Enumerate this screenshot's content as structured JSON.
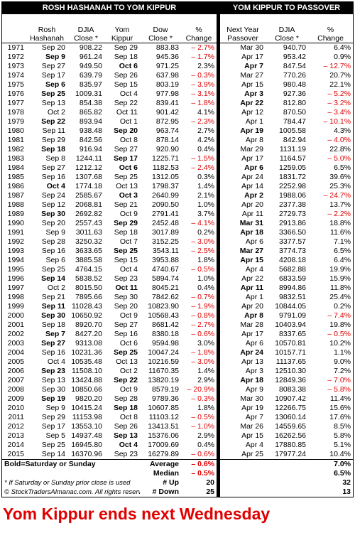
{
  "header": {
    "left_title": "ROSH HASHANAH TO YOM KIPPUR",
    "right_title": "YOM KIPPUR TO PASSOVER",
    "columns": [
      [
        "Rosh",
        "Hashanah"
      ],
      [
        "DJIA",
        "Close *"
      ],
      [
        "Yom",
        "Kippur"
      ],
      [
        "Dow",
        "Close *"
      ],
      [
        "%",
        "Change"
      ],
      [
        "Next Year",
        "Passover"
      ],
      [
        "DJIA",
        "Close *"
      ],
      [
        "%",
        "Change"
      ]
    ]
  },
  "rows": [
    [
      "1971",
      "Sep 20",
      "908.22",
      "Sep 29",
      "883.83",
      "– 2.7%",
      "Mar 30",
      "940.70",
      "6.4%"
    ],
    [
      "1972",
      {
        "text": "Sep 9",
        "bold": true
      },
      "961.24",
      "Sep 18",
      "945.36",
      "– 1.7%",
      "Apr 17",
      "953.42",
      "0.9%"
    ],
    [
      "1973",
      "Sep 27",
      "949.50",
      {
        "text": "Oct 6",
        "bold": true
      },
      "971.25",
      "2.3%",
      {
        "text": "Apr 7",
        "bold": true
      },
      "847.54",
      "– 12.7%"
    ],
    [
      "1974",
      "Sep 17",
      "639.79",
      "Sep 26",
      "637.98",
      "– 0.3%",
      "Mar 27",
      "770.26",
      "20.7%"
    ],
    [
      "1975",
      {
        "text": "Sep 6",
        "bold": true
      },
      "835.97",
      "Sep 15",
      "803.19",
      "– 3.9%",
      "Apr 15",
      "980.48",
      "22.1%"
    ],
    [
      "1976",
      {
        "text": "Sep 25",
        "bold": true
      },
      "1009.31",
      "Oct 4",
      "977.98",
      "– 3.1%",
      {
        "text": "Apr 3",
        "bold": true
      },
      "927.36",
      "– 5.2%"
    ],
    [
      "1977",
      "Sep 13",
      "854.38",
      "Sep 22",
      "839.41",
      "– 1.8%",
      {
        "text": "Apr 22",
        "bold": true
      },
      "812.80",
      "– 3.2%"
    ],
    [
      "1978",
      "Oct 2",
      "865.82",
      "Oct 11",
      "901.42",
      "4.1%",
      "Apr 12",
      "870.50",
      "– 3.4%"
    ],
    [
      "1979",
      {
        "text": "Sep 22",
        "bold": true
      },
      "893.94",
      "Oct 1",
      "872.95",
      "– 2.3%",
      "Apr 1",
      "784.47",
      "– 10.1%"
    ],
    [
      "1980",
      "Sep 11",
      "938.48",
      {
        "text": "Sep 20",
        "bold": true
      },
      "963.74",
      "2.7%",
      {
        "text": "Apr 19",
        "bold": true
      },
      "1005.58",
      "4.3%"
    ],
    [
      "1981",
      "Sep 29",
      "842.56",
      "Oct 8",
      "878.14",
      "4.2%",
      "Apr 8",
      "842.94",
      "– 4.0%"
    ],
    [
      "1982",
      {
        "text": "Sep 18",
        "bold": true
      },
      "916.94",
      "Sep 27",
      "920.90",
      "0.4%",
      "Mar 29",
      "1131.19",
      "22.8%"
    ],
    [
      "1983",
      "Sep 8",
      "1244.11",
      {
        "text": "Sep 17",
        "bold": true
      },
      "1225.71",
      "– 1.5%",
      "Apr 17",
      "1164.57",
      "– 5.0%"
    ],
    [
      "1984",
      "Sep 27",
      "1212.12",
      {
        "text": "Oct 6",
        "bold": true
      },
      "1182.53",
      "– 2.4%",
      {
        "text": "Apr 6",
        "bold": true
      },
      "1259.05",
      "6.5%"
    ],
    [
      "1985",
      "Sep 16",
      "1307.68",
      "Sep 25",
      "1312.05",
      "0.3%",
      "Apr 24",
      "1831.72",
      "39.6%"
    ],
    [
      "1986",
      {
        "text": "Oct 4",
        "bold": true
      },
      "1774.18",
      "Oct 13",
      "1798.37",
      "1.4%",
      "Apr 14",
      "2252.98",
      "25.3%"
    ],
    [
      "1987",
      "Sep 24",
      "2585.67",
      {
        "text": "Oct 3",
        "bold": true
      },
      "2640.99",
      "2.1%",
      {
        "text": "Apr 2",
        "bold": true
      },
      "1988.06",
      "– 24.7%"
    ],
    [
      "1988",
      "Sep 12",
      "2068.81",
      "Sep 21",
      "2090.50",
      "1.0%",
      "Apr 20",
      "2377.38",
      "13.7%"
    ],
    [
      "1989",
      {
        "text": "Sep 30",
        "bold": true
      },
      "2692.82",
      "Oct 9",
      "2791.41",
      "3.7%",
      "Apr 11",
      "2729.73",
      "– 2.2%"
    ],
    [
      "1990",
      "Sep 20",
      "2557.43",
      {
        "text": "Sep 29",
        "bold": true
      },
      "2452.48",
      "– 4.1%",
      {
        "text": "Mar 31",
        "bold": true
      },
      "2913.86",
      "18.8%"
    ],
    [
      "1991",
      "Sep 9",
      "3011.63",
      "Sep 18",
      "3017.89",
      "0.2%",
      {
        "text": "Apr 18",
        "bold": true
      },
      "3366.50",
      "11.6%"
    ],
    [
      "1992",
      "Sep 28",
      "3250.32",
      "Oct 7",
      "3152.25",
      "– 3.0%",
      "Apr 6",
      "3377.57",
      "7.1%"
    ],
    [
      "1993",
      "Sep 16",
      "3633.65",
      {
        "text": "Sep 25",
        "bold": true
      },
      "3543.11",
      "– 2.5%",
      {
        "text": "Mar 27",
        "bold": true
      },
      "3774.73",
      "6.5%"
    ],
    [
      "1994",
      "Sep 6",
      "3885.58",
      "Sep 15",
      "3953.88",
      "1.8%",
      {
        "text": "Apr 15",
        "bold": true
      },
      "4208.18",
      "6.4%"
    ],
    [
      "1995",
      "Sep 25",
      "4764.15",
      "Oct 4",
      "4740.67",
      "– 0.5%",
      "Apr 4",
      "5682.88",
      "19.9%"
    ],
    [
      "1996",
      {
        "text": "Sep 14",
        "bold": true
      },
      "5838.52",
      "Sep 23",
      "5894.74",
      "1.0%",
      "Apr 22",
      "6833.59",
      "15.9%"
    ],
    [
      "1997",
      "Oct 2",
      "8015.50",
      {
        "text": "Oct 11",
        "bold": true
      },
      "8045.21",
      "0.4%",
      {
        "text": "Apr 11",
        "bold": true
      },
      "8994.86",
      "11.8%"
    ],
    [
      "1998",
      "Sep 21",
      "7895.66",
      "Sep 30",
      "7842.62",
      "– 0.7%",
      "Apr 1",
      "9832.51",
      "25.4%"
    ],
    [
      "1999",
      {
        "text": "Sep 11",
        "bold": true
      },
      "11028.43",
      "Sep 20",
      "10823.90",
      "– 1.9%",
      "Apr 20",
      "10844.05",
      "0.2%"
    ],
    [
      "2000",
      {
        "text": "Sep 30",
        "bold": true
      },
      "10650.92",
      "Oct 9",
      "10568.43",
      "– 0.8%",
      {
        "text": "Apr 8",
        "bold": true
      },
      "9791.09",
      "– 7.4%"
    ],
    [
      "2001",
      "Sep 18",
      "8920.70",
      "Sep 27",
      "8681.42",
      "– 2.7%",
      "Mar 28",
      "10403.94",
      "19.8%"
    ],
    [
      "2002",
      {
        "text": "Sep 7",
        "bold": true
      },
      "8427.20",
      "Sep 16",
      "8380.18",
      "– 0.6%",
      "Apr 17",
      "8337.65",
      "– 0.5%"
    ],
    [
      "2003",
      {
        "text": "Sep 27",
        "bold": true
      },
      "9313.08",
      "Oct 6",
      "9594.98",
      "3.0%",
      "Apr 6",
      "10570.81",
      "10.2%"
    ],
    [
      "2004",
      "Sep 16",
      "10231.36",
      {
        "text": "Sep 25",
        "bold": true
      },
      "10047.24",
      "– 1.8%",
      {
        "text": "Apr 24",
        "bold": true
      },
      "10157.71",
      "1.1%"
    ],
    [
      "2005",
      "Oct 4",
      "10535.48",
      "Oct 13",
      "10216.59",
      "– 3.0%",
      "Apr 13",
      "11137.65",
      "9.0%"
    ],
    [
      "2006",
      {
        "text": "Sep 23",
        "bold": true
      },
      "11508.10",
      "Oct 2",
      "11670.35",
      "1.4%",
      "Apr 3",
      "12510.30",
      "7.2%"
    ],
    [
      "2007",
      "Sep 13",
      "13424.88",
      {
        "text": "Sep 22",
        "bold": true
      },
      "13820.19",
      "2.9%",
      {
        "text": "Apr 18",
        "bold": true
      },
      "12849.36",
      "– 7.0%"
    ],
    [
      "2008",
      "Sep 30",
      "10850.66",
      "Oct 9",
      "8579.19",
      "– 20.9%",
      "Apr 9",
      "8083.38",
      "– 5.8%"
    ],
    [
      "2009",
      {
        "text": "Sep 19",
        "bold": true
      },
      "9820.20",
      "Sep 28",
      "9789.36",
      "– 0.3%",
      "Mar 30",
      "10907.42",
      "11.4%"
    ],
    [
      "2010",
      "Sep 9",
      "10415.24",
      {
        "text": "Sep 18",
        "bold": true
      },
      "10607.85",
      "1.8%",
      "Apr 19",
      "12266.75",
      "15.6%"
    ],
    [
      "2011",
      "Sep 29",
      "11153.98",
      "Oct 8",
      "11103.12",
      "– 0.5%",
      "Apr 7",
      "13060.14",
      "17.6%"
    ],
    [
      "2012",
      "Sep 17",
      "13553.10",
      "Sep 26",
      "13413.51",
      "– 1.0%",
      "Mar 26",
      "14559.65",
      "8.5%"
    ],
    [
      "2013",
      "Sep 5",
      "14937.48",
      {
        "text": "Sep 13",
        "bold": true
      },
      "15376.06",
      "2.9%",
      "Apr 15",
      "16262.56",
      "5.8%"
    ],
    [
      "2014",
      "Sep 25",
      "16945.80",
      {
        "text": "Oct 4",
        "bold": true
      },
      "17009.69",
      "0.4%",
      "Apr 4",
      "17880.85",
      "5.1%"
    ],
    [
      "2015",
      "Sep 14",
      "16370.96",
      "Sep 23",
      "16279.89",
      "– 0.6%",
      "Apr 25",
      "17977.24",
      "10.4%"
    ]
  ],
  "footer": {
    "bold_note": "Bold=Saturday or Sunday",
    "close_note": "* If Saturday or Sunday prior close is used",
    "copyright": "© StockTradersAlmanac.com. All rights reserved.",
    "stats": [
      [
        "Average",
        "– 0.6%",
        "7.0%"
      ],
      [
        "Median",
        "– 0.5%",
        "6.5%"
      ],
      [
        "# Up",
        "20",
        "32"
      ],
      [
        "# Down",
        "25",
        "13"
      ]
    ]
  },
  "banner": "Yom Kippur ends next Wednesday"
}
